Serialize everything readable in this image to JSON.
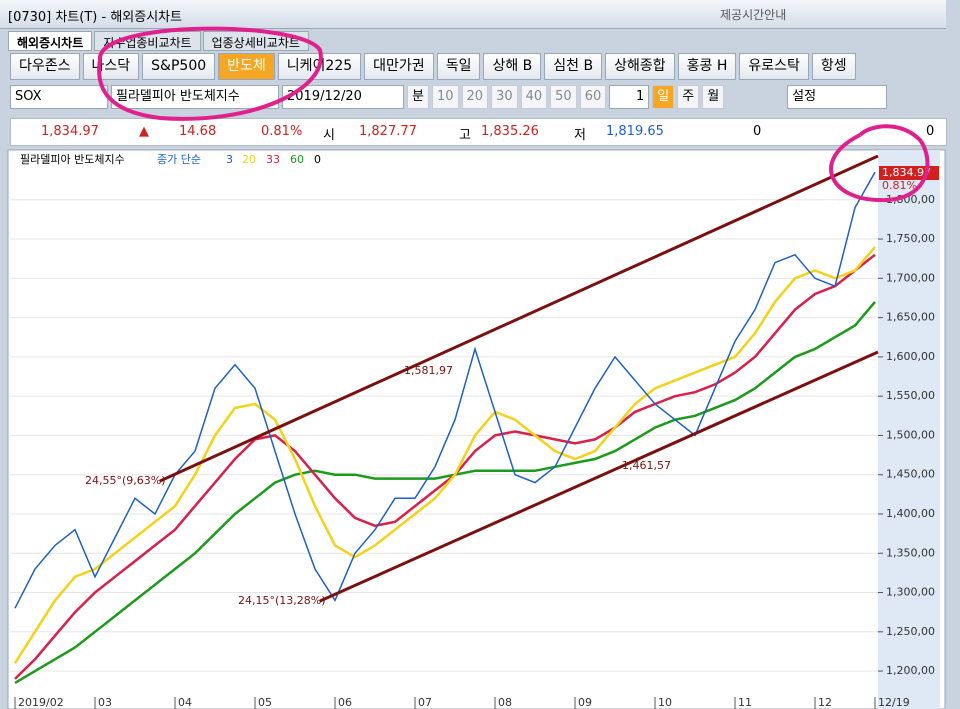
{
  "window": {
    "title": "[0730] 차트(T) - 해외증시차트",
    "help": "제공시간안내"
  },
  "tabs": [
    "해외증시차트",
    "지수업종비교차트",
    "업종상세비교차트"
  ],
  "buttons": [
    "다우존스",
    "나스닥",
    "S&P500",
    "반도체",
    "니케이225",
    "대만가권",
    "독일",
    "상해 B",
    "심천 B",
    "상해종합",
    "홍콩 H",
    "유로스탁",
    "항셍"
  ],
  "active_button": "반도체",
  "toolbar": {
    "code": "SOX",
    "name": "필라델피아 반도체지수",
    "date": "2019/12/20",
    "unit": "분",
    "periods": [
      "10",
      "20",
      "30",
      "40",
      "50",
      "60"
    ],
    "count": "1",
    "day": "일",
    "week": "주",
    "month": "월",
    "settings": "설정"
  },
  "quote": {
    "price": "1,834.97",
    "arrow": "▲",
    "change": "14.68",
    "rate": "0.81%",
    "open_label": "시",
    "open": "1,827.77",
    "high_label": "고",
    "high": "1,835.26",
    "low_label": "저",
    "low": "1,819.65",
    "v1": "0",
    "v2": "0"
  },
  "chart_data": {
    "type": "line",
    "title": "필라델피아 반도체지수",
    "subtitle": "종가 단순",
    "categories": [
      "2019/02",
      null,
      null,
      null,
      "03",
      null,
      null,
      null,
      "04",
      null,
      null,
      null,
      "05",
      null,
      null,
      null,
      "06",
      null,
      null,
      null,
      "07",
      null,
      null,
      null,
      "08",
      null,
      null,
      null,
      "09",
      null,
      null,
      null,
      "10",
      null,
      null,
      null,
      "11",
      null,
      null,
      null,
      "12",
      null,
      null,
      "12/19"
    ],
    "series": [
      {
        "name": "3",
        "color": "#1f5fc8",
        "values": [
          1280,
          1330,
          1360,
          1380,
          1320,
          1370,
          1420,
          1400,
          1450,
          1480,
          1560,
          1590,
          1560,
          1480,
          1400,
          1330,
          1290,
          1350,
          1380,
          1420,
          1420,
          1460,
          1520,
          1610,
          1530,
          1450,
          1440,
          1460,
          1510,
          1560,
          1600,
          1570,
          1540,
          1520,
          1500,
          1560,
          1620,
          1660,
          1720,
          1730,
          1700,
          1690,
          1790,
          1834.97
        ]
      },
      {
        "name": "20",
        "color": "#f2d21a",
        "values": [
          1210,
          1250,
          1290,
          1320,
          1330,
          1350,
          1370,
          1390,
          1410,
          1450,
          1500,
          1535,
          1540,
          1520,
          1470,
          1410,
          1360,
          1345,
          1360,
          1380,
          1400,
          1420,
          1450,
          1500,
          1530,
          1520,
          1500,
          1480,
          1470,
          1480,
          1510,
          1540,
          1560,
          1570,
          1580,
          1590,
          1600,
          1630,
          1670,
          1700,
          1710,
          1700,
          1710,
          1740
        ]
      },
      {
        "name": "33",
        "color": "#d8204a",
        "values": [
          1190,
          1215,
          1245,
          1275,
          1300,
          1320,
          1340,
          1360,
          1380,
          1410,
          1440,
          1470,
          1495,
          1500,
          1480,
          1450,
          1420,
          1395,
          1385,
          1390,
          1410,
          1430,
          1450,
          1480,
          1500,
          1505,
          1500,
          1495,
          1490,
          1495,
          1510,
          1530,
          1540,
          1550,
          1555,
          1565,
          1580,
          1600,
          1630,
          1660,
          1680,
          1690,
          1710,
          1730
        ]
      },
      {
        "name": "60",
        "color": "#1c9a1c",
        "values": [
          1185,
          1200,
          1215,
          1230,
          1250,
          1270,
          1290,
          1310,
          1330,
          1350,
          1375,
          1400,
          1420,
          1440,
          1450,
          1455,
          1450,
          1450,
          1445,
          1445,
          1445,
          1445,
          1450,
          1455,
          1455,
          1455,
          1455,
          1460,
          1465,
          1470,
          1480,
          1495,
          1510,
          1520,
          1525,
          1535,
          1545,
          1560,
          1580,
          1600,
          1610,
          1625,
          1640,
          1670
        ]
      }
    ],
    "legend_extra": "0",
    "ylim": [
      1167,
      1857
    ],
    "yticks": [
      {
        "value": 1200,
        "label": "1,200,00"
      },
      {
        "value": 1250,
        "label": "1,250,00"
      },
      {
        "value": 1300,
        "label": "1,300,00"
      },
      {
        "value": 1350,
        "label": "1,350,00"
      },
      {
        "value": 1400,
        "label": "1,400,00"
      },
      {
        "value": 1450,
        "label": "1,450,00"
      },
      {
        "value": 1500,
        "label": "1,500,00"
      },
      {
        "value": 1550,
        "label": "1,550,00"
      },
      {
        "value": 1600,
        "label": "1,600,00"
      },
      {
        "value": 1650,
        "label": "1,650,00"
      },
      {
        "value": 1700,
        "label": "1,700,00"
      },
      {
        "value": 1750,
        "label": "1,750,00"
      },
      {
        "value": 1800,
        "label": "1,800,00"
      }
    ],
    "annotations": [
      "24,55°(9,63%)",
      "1,581,97",
      "1,461,57",
      "24,15°(13,28%)"
    ],
    "grid": true
  }
}
